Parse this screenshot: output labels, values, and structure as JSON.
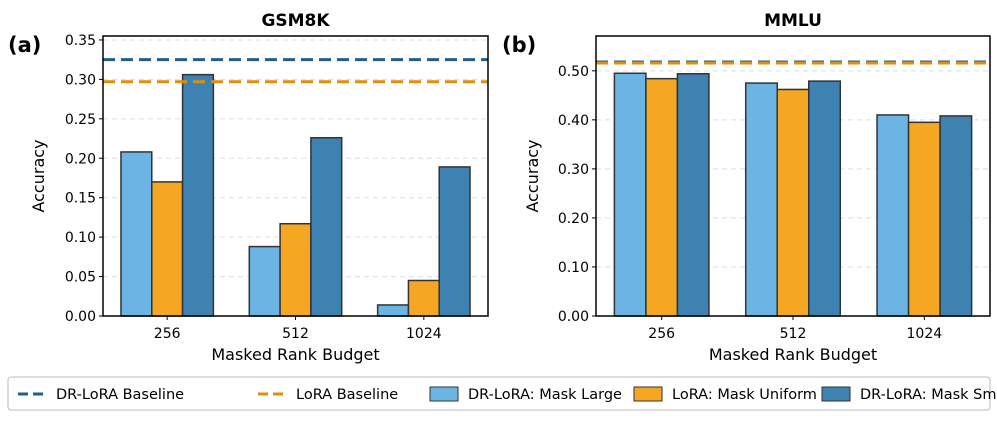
{
  "colors": {
    "dr_baseline": "#1f5f8b",
    "lora_baseline": "#e08e0b",
    "mask_large": "#6cb4e4",
    "mask_uniform": "#f5a623",
    "mask_small": "#3d82b1"
  },
  "legend": [
    "DR-LoRA Baseline",
    "LoRA Baseline",
    "DR-LoRA: Mask Large",
    "LoRA: Mask Uniform",
    "DR-LoRA: Mask Small"
  ],
  "chart_data": [
    {
      "type": "bar",
      "panel": "(a)",
      "title": "GSM8K",
      "xlabel": "Masked Rank Budget",
      "ylabel": "Accuracy",
      "categories": [
        "256",
        "512",
        "1024"
      ],
      "ylim": [
        0,
        0.355
      ],
      "yticks": [
        "0.00",
        "0.05",
        "0.10",
        "0.15",
        "0.20",
        "0.25",
        "0.30",
        "0.35"
      ],
      "ytick_values": [
        0,
        0.05,
        0.1,
        0.15,
        0.2,
        0.25,
        0.3,
        0.35
      ],
      "grid": true,
      "series": [
        {
          "name": "DR-LoRA: Mask Large",
          "values": [
            0.208,
            0.088,
            0.014
          ]
        },
        {
          "name": "LoRA: Mask Uniform",
          "values": [
            0.17,
            0.117,
            0.045
          ]
        },
        {
          "name": "DR-LoRA: Mask Small",
          "values": [
            0.306,
            0.226,
            0.189
          ]
        }
      ],
      "baselines": [
        {
          "name": "DR-LoRA Baseline",
          "value": 0.325
        },
        {
          "name": "LoRA Baseline",
          "value": 0.297
        }
      ]
    },
    {
      "type": "bar",
      "panel": "(b)",
      "title": "MMLU",
      "xlabel": "Masked Rank Budget",
      "ylabel": "Accuracy",
      "categories": [
        "256",
        "512",
        "1024"
      ],
      "ylim": [
        0,
        0.571
      ],
      "yticks": [
        "0.00",
        "0.10",
        "0.20",
        "0.30",
        "0.40",
        "0.50"
      ],
      "ytick_values": [
        0,
        0.1,
        0.2,
        0.3,
        0.4,
        0.5
      ],
      "grid": true,
      "series": [
        {
          "name": "DR-LoRA: Mask Large",
          "values": [
            0.495,
            0.475,
            0.41
          ]
        },
        {
          "name": "LoRA: Mask Uniform",
          "values": [
            0.484,
            0.462,
            0.395
          ]
        },
        {
          "name": "DR-LoRA: Mask Small",
          "values": [
            0.494,
            0.479,
            0.408
          ]
        }
      ],
      "baselines": [
        {
          "name": "DR-LoRA Baseline",
          "value": 0.518
        },
        {
          "name": "LoRA Baseline",
          "value": 0.516
        }
      ]
    }
  ]
}
